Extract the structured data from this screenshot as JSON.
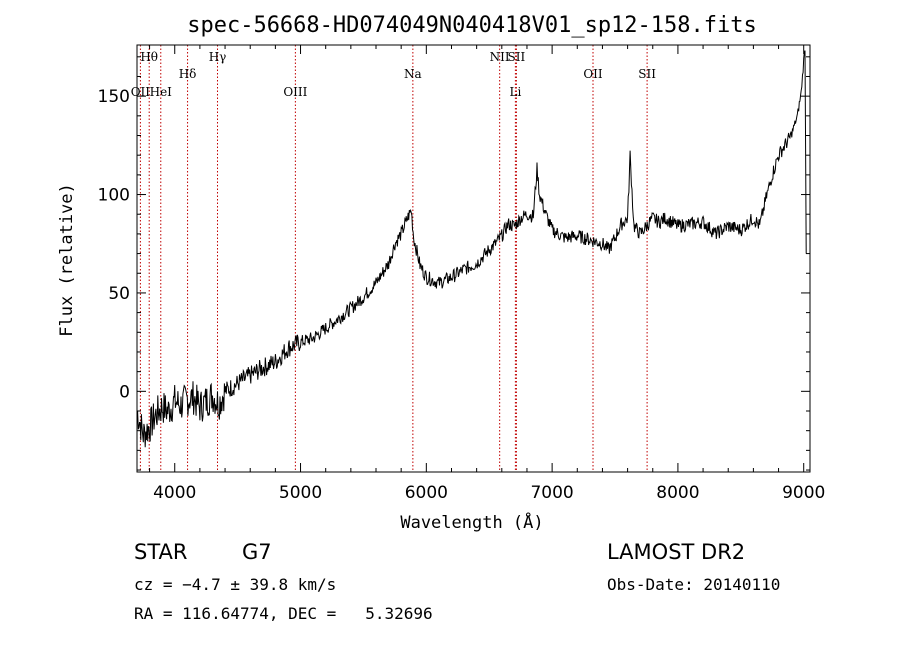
{
  "chart_data": {
    "type": "line",
    "title": "spec-56668-HD074049N040418V01_sp12-158.fits",
    "xlabel": "Wavelength (Å)",
    "ylabel": "Flux (relative)",
    "xlim": [
      3700,
      9050
    ],
    "ylim": [
      -41,
      176
    ],
    "x_ticks": [
      4000,
      5000,
      6000,
      7000,
      8000,
      9000
    ],
    "y_ticks": [
      0,
      50,
      100,
      150
    ],
    "grid": false,
    "series": [
      {
        "x": [
          3700,
          3750,
          3800,
          3850,
          3900,
          3950,
          4000,
          4050,
          4100,
          4150,
          4200,
          4250,
          4300,
          4350,
          4400,
          4500,
          4600,
          4700,
          4800,
          4900,
          5000,
          5100,
          5200,
          5300,
          5400,
          5500,
          5600,
          5700,
          5750,
          5800,
          5850,
          5880,
          5900,
          5950,
          6000,
          6100,
          6200,
          6300,
          6400,
          6500,
          6550,
          6600,
          6650,
          6700,
          6750,
          6800,
          6850,
          6880,
          6900,
          6950,
          7000,
          7100,
          7200,
          7300,
          7400,
          7450,
          7500,
          7550,
          7600,
          7620,
          7650,
          7700,
          7800,
          7850,
          7900,
          8000,
          8100,
          8200,
          8300,
          8400,
          8500,
          8600,
          8650,
          8700,
          8750,
          8800,
          8850,
          8900,
          8950,
          8980,
          9000,
          9010,
          9020
        ],
        "y": [
          -10,
          -22,
          -18,
          -12,
          -8,
          -10,
          -5,
          -7,
          -4,
          -3,
          -8,
          -5,
          -2,
          -6,
          0,
          4,
          8,
          12,
          15,
          22,
          25,
          27,
          32,
          37,
          42,
          48,
          55,
          65,
          75,
          80,
          88,
          92,
          78,
          64,
          58,
          55,
          58,
          62,
          65,
          72,
          75,
          79,
          85,
          84,
          88,
          90,
          89,
          113,
          100,
          90,
          82,
          78,
          79,
          77,
          75,
          72,
          78,
          85,
          88,
          120,
          84,
          80,
          88,
          86,
          88,
          84,
          85,
          86,
          80,
          84,
          82,
          88,
          84,
          98,
          110,
          120,
          125,
          130,
          140,
          152,
          168,
          175,
          70
        ]
      }
    ],
    "line_markers": [
      {
        "label": "Hθ",
        "x": 3797,
        "row": 0
      },
      {
        "label": "OII",
        "x": 3727,
        "row": 2
      },
      {
        "label": "HeI",
        "x": 3889,
        "row": 2
      },
      {
        "label": "Hδ",
        "x": 4102,
        "row": 1
      },
      {
        "label": "Hγ",
        "x": 4340,
        "row": 0
      },
      {
        "label": "OIII",
        "x": 4959,
        "row": 2
      },
      {
        "label": "Na",
        "x": 5893,
        "row": 1
      },
      {
        "label": "NII",
        "x": 6583,
        "row": 0
      },
      {
        "label": "SII",
        "x": 6716,
        "row": 0
      },
      {
        "label": "Li",
        "x": 6708,
        "row": 2
      },
      {
        "label": "OII",
        "x": 7325,
        "row": 1
      },
      {
        "label": "SII",
        "x": 7755,
        "row": 1
      }
    ]
  },
  "info": {
    "object_type": "STAR",
    "subclass": "G7",
    "survey": "LAMOST DR2",
    "cz": "cz = −4.7 ± 39.8 km/s",
    "obs_date": "Obs-Date: 20140110",
    "coords": "RA = 116.64774, DEC =   5.32696"
  }
}
